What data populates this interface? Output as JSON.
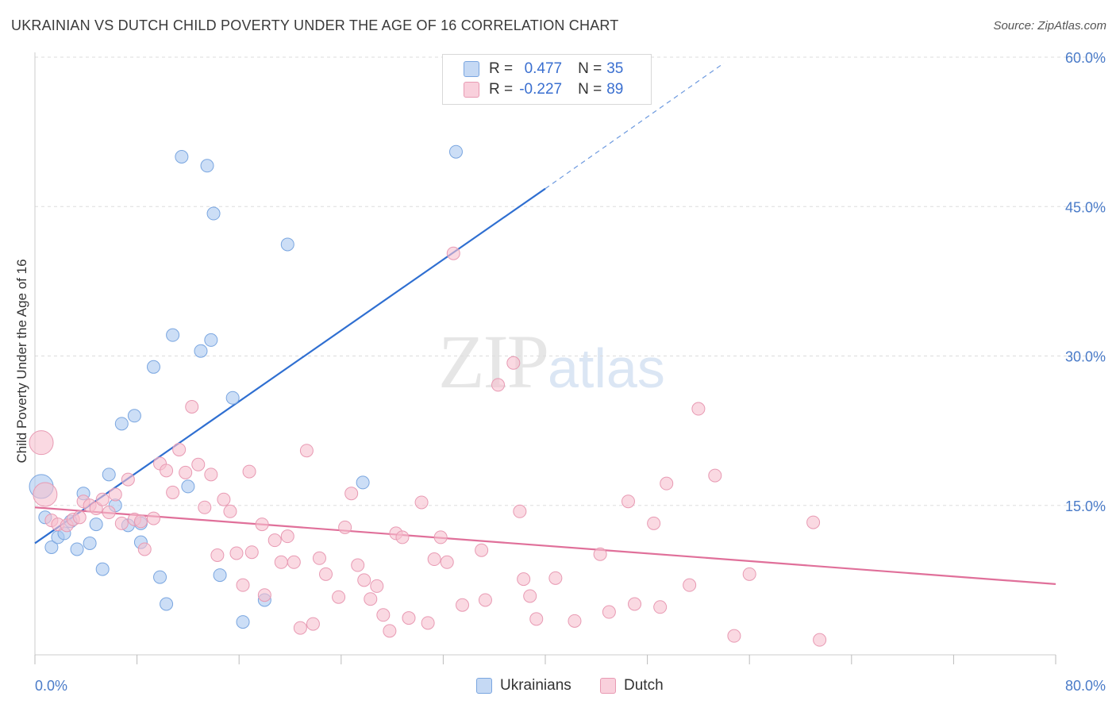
{
  "header": {
    "title": "UKRAINIAN VS DUTCH CHILD POVERTY UNDER THE AGE OF 16 CORRELATION CHART",
    "source": "Source: ZipAtlas.com"
  },
  "watermark": {
    "zip": "ZIP",
    "atlas": "atlas"
  },
  "legend_top": {
    "rows": [
      {
        "r_label": "R =",
        "r_value": "0.477",
        "n_label": "N =",
        "n_value": "35"
      },
      {
        "r_label": "R =",
        "r_value": "-0.227",
        "n_label": "N =",
        "n_value": "89"
      }
    ]
  },
  "legend_bottom": {
    "items": [
      {
        "label": "Ukrainians"
      },
      {
        "label": "Dutch"
      }
    ]
  },
  "colors": {
    "ukr_fill": "#aac8f0",
    "ukr_stroke": "#7aa6e0",
    "ukr_line": "#2f6fd1",
    "dutch_fill": "#f6bfcf",
    "dutch_stroke": "#e89ab3",
    "dutch_line": "#e0709a",
    "grid": "#dddddd",
    "tick_text": "#4a7bc8"
  },
  "chart_data": {
    "type": "scatter",
    "title": "UKRAINIAN VS DUTCH CHILD POVERTY UNDER THE AGE OF 16 CORRELATION CHART",
    "xlabel": "",
    "ylabel": "Child Poverty Under the Age of 16",
    "xlim": [
      0,
      80
    ],
    "ylim": [
      0,
      60
    ],
    "x_ticks": [
      "0.0%",
      "80.0%"
    ],
    "y_ticks": [
      "15.0%",
      "30.0%",
      "45.0%",
      "60.0%"
    ],
    "grid": true,
    "legend": "top-center",
    "series": [
      {
        "name": "Ukrainians",
        "r": 0.477,
        "n": 35,
        "trend": {
          "x1": 0,
          "y1": 11.2,
          "x2": 40,
          "y2": 46.8,
          "dash_x2": 54,
          "dash_y2": 59.4
        },
        "points": [
          [
            0.5,
            16.9
          ],
          [
            0.8,
            13.8
          ],
          [
            1.3,
            10.8
          ],
          [
            1.8,
            11.8
          ],
          [
            2.3,
            12.2
          ],
          [
            2.8,
            13.4
          ],
          [
            3.3,
            10.6
          ],
          [
            3.8,
            16.2
          ],
          [
            4.3,
            11.2
          ],
          [
            4.8,
            13.1
          ],
          [
            5.3,
            8.6
          ],
          [
            5.8,
            18.1
          ],
          [
            6.3,
            15.0
          ],
          [
            6.8,
            23.2
          ],
          [
            7.3,
            13.0
          ],
          [
            7.8,
            24.0
          ],
          [
            8.3,
            11.3
          ],
          [
            8.3,
            13.2
          ],
          [
            9.3,
            28.9
          ],
          [
            9.8,
            7.8
          ],
          [
            10.3,
            5.1
          ],
          [
            10.8,
            32.1
          ],
          [
            11.5,
            50.0
          ],
          [
            12.0,
            16.9
          ],
          [
            13.0,
            30.5
          ],
          [
            13.5,
            49.1
          ],
          [
            13.8,
            31.6
          ],
          [
            14.0,
            44.3
          ],
          [
            14.5,
            8.0
          ],
          [
            15.5,
            25.8
          ],
          [
            16.3,
            3.3
          ],
          [
            18.0,
            5.5
          ],
          [
            19.8,
            41.2
          ],
          [
            25.7,
            17.3
          ],
          [
            33.0,
            50.5
          ]
        ]
      },
      {
        "name": "Dutch",
        "r": -0.227,
        "n": 89,
        "trend": {
          "x1": 0,
          "y1": 14.8,
          "x2": 80,
          "y2": 7.1
        },
        "points": [
          [
            0.5,
            21.3
          ],
          [
            0.8,
            16.1
          ],
          [
            1.3,
            13.5
          ],
          [
            1.8,
            13.1
          ],
          [
            2.5,
            13.0
          ],
          [
            3.0,
            13.6
          ],
          [
            3.5,
            13.8
          ],
          [
            3.8,
            15.4
          ],
          [
            4.3,
            15.0
          ],
          [
            4.8,
            14.7
          ],
          [
            5.3,
            15.6
          ],
          [
            5.8,
            14.3
          ],
          [
            6.3,
            16.1
          ],
          [
            6.8,
            13.2
          ],
          [
            7.3,
            17.6
          ],
          [
            7.8,
            13.6
          ],
          [
            8.3,
            13.4
          ],
          [
            8.6,
            10.6
          ],
          [
            9.3,
            13.7
          ],
          [
            9.8,
            19.2
          ],
          [
            10.3,
            18.5
          ],
          [
            10.8,
            16.3
          ],
          [
            11.3,
            20.6
          ],
          [
            11.8,
            18.3
          ],
          [
            12.3,
            24.9
          ],
          [
            12.8,
            19.1
          ],
          [
            13.3,
            14.8
          ],
          [
            13.8,
            18.1
          ],
          [
            14.3,
            10.0
          ],
          [
            14.8,
            15.6
          ],
          [
            15.3,
            14.4
          ],
          [
            15.8,
            10.2
          ],
          [
            16.3,
            7.0
          ],
          [
            16.8,
            18.4
          ],
          [
            17.0,
            10.3
          ],
          [
            17.8,
            13.1
          ],
          [
            18.0,
            6.0
          ],
          [
            18.8,
            11.5
          ],
          [
            19.3,
            9.3
          ],
          [
            19.8,
            11.9
          ],
          [
            20.3,
            9.3
          ],
          [
            20.8,
            2.7
          ],
          [
            21.3,
            20.5
          ],
          [
            21.8,
            3.1
          ],
          [
            22.3,
            9.7
          ],
          [
            22.8,
            8.1
          ],
          [
            23.8,
            5.8
          ],
          [
            24.3,
            12.8
          ],
          [
            24.8,
            16.2
          ],
          [
            25.3,
            9.0
          ],
          [
            25.8,
            7.5
          ],
          [
            26.3,
            5.6
          ],
          [
            26.8,
            6.9
          ],
          [
            27.3,
            4.0
          ],
          [
            27.8,
            2.4
          ],
          [
            28.3,
            12.2
          ],
          [
            28.8,
            11.8
          ],
          [
            29.3,
            3.7
          ],
          [
            30.3,
            15.3
          ],
          [
            30.8,
            3.2
          ],
          [
            31.3,
            9.6
          ],
          [
            31.8,
            11.8
          ],
          [
            32.3,
            9.3
          ],
          [
            32.8,
            40.3
          ],
          [
            33.5,
            5.0
          ],
          [
            35.0,
            10.5
          ],
          [
            35.3,
            5.5
          ],
          [
            36.3,
            27.1
          ],
          [
            37.5,
            29.3
          ],
          [
            38.0,
            14.4
          ],
          [
            38.3,
            7.6
          ],
          [
            38.8,
            5.9
          ],
          [
            39.3,
            3.6
          ],
          [
            40.8,
            7.7
          ],
          [
            42.3,
            3.4
          ],
          [
            44.3,
            10.1
          ],
          [
            45.0,
            4.3
          ],
          [
            46.5,
            15.4
          ],
          [
            47.0,
            5.1
          ],
          [
            48.5,
            13.2
          ],
          [
            49.0,
            4.8
          ],
          [
            49.5,
            17.2
          ],
          [
            51.3,
            7.0
          ],
          [
            52.0,
            24.7
          ],
          [
            53.3,
            18.0
          ],
          [
            54.8,
            1.9
          ],
          [
            56.0,
            8.1
          ],
          [
            61.0,
            13.3
          ],
          [
            61.5,
            1.5
          ]
        ]
      }
    ]
  }
}
